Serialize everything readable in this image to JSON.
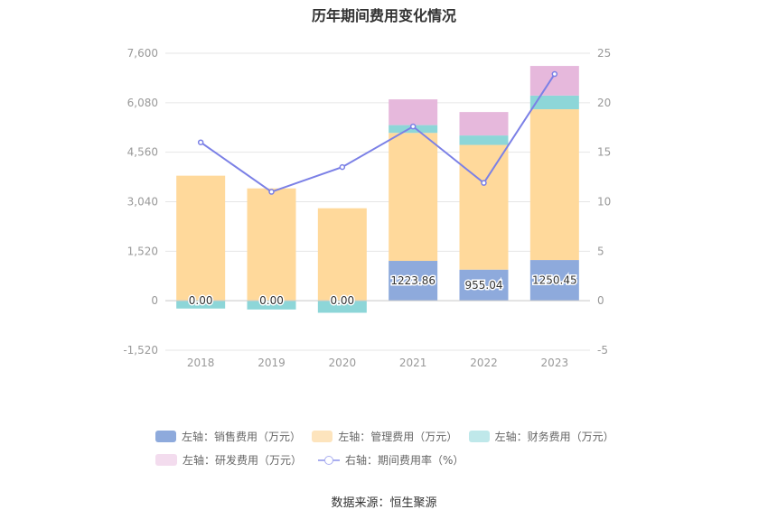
{
  "chart_data": {
    "type": "bar",
    "title": "历年期间费用变化情况",
    "categories": [
      "2018",
      "2019",
      "2020",
      "2021",
      "2022",
      "2023"
    ],
    "stacked": true,
    "left_axis": {
      "min": -1520,
      "max": 7600,
      "ticks": [
        "-1,520",
        "0",
        "1,520",
        "3,040",
        "4,560",
        "6,080",
        "7,600"
      ]
    },
    "right_axis": {
      "min": -5,
      "max": 25,
      "ticks": [
        "-5",
        "0",
        "5",
        "10",
        "15",
        "20",
        "25"
      ]
    },
    "series": [
      {
        "name": "左轴：销售费用（万元）",
        "axis": "left",
        "color": "#8eaadc",
        "values": [
          0,
          0,
          0,
          1223.86,
          955.04,
          1250.45
        ],
        "labels": [
          "0.00",
          "0.00",
          "0.00",
          "1223.86",
          "955.04",
          "1250.45"
        ]
      },
      {
        "name": "左轴：管理费用（万元）",
        "axis": "left",
        "color": "#ffd99b",
        "values": [
          3840,
          3450,
          2840,
          3930,
          3830,
          4630
        ]
      },
      {
        "name": "左轴：财务费用（万元）",
        "axis": "left",
        "color": "#8dd6d8",
        "values": [
          -240,
          -270,
          -370,
          240,
          290,
          420
        ]
      },
      {
        "name": "左轴：研发费用（万元）",
        "axis": "left",
        "color": "#e6b8dc",
        "values": [
          0,
          0,
          0,
          790,
          720,
          910
        ]
      },
      {
        "name": "右轴：期间费用率（%）",
        "axis": "right",
        "type": "line",
        "color": "#7b80e6",
        "values": [
          16.0,
          11.0,
          13.5,
          17.6,
          11.9,
          22.9
        ]
      }
    ],
    "legend_position": "bottom"
  },
  "source_text": "数据来源：恒生聚源"
}
